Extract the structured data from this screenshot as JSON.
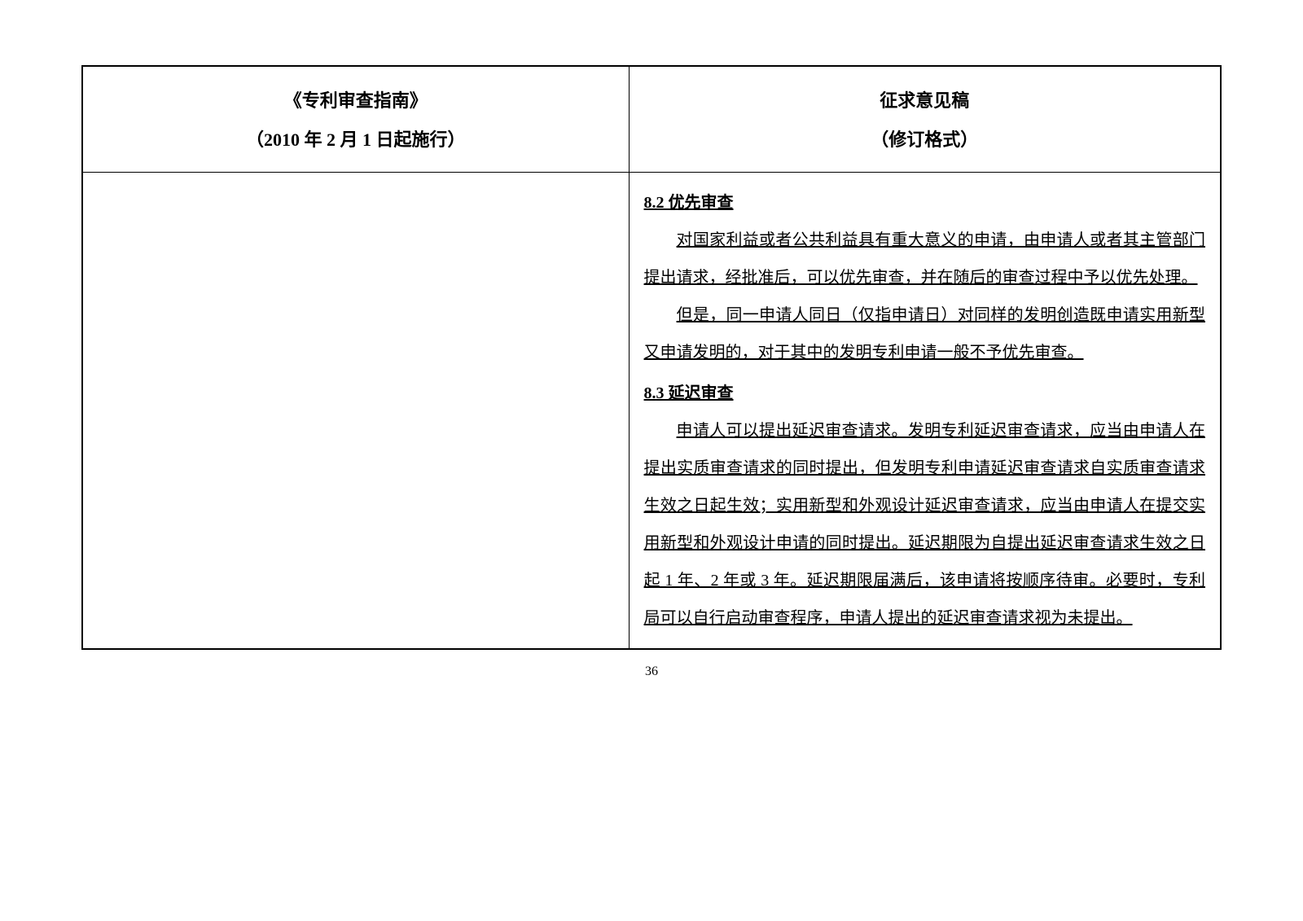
{
  "header": {
    "left_title": "《专利审查指南》",
    "left_subtitle": "（2010 年 2 月 1 日起施行）",
    "right_title": "征求意见稿",
    "right_subtitle": "（修订格式）"
  },
  "content": {
    "left": "",
    "sections": [
      {
        "heading": "8.2  优先审查",
        "paragraphs": [
          "对国家利益或者公共利益具有重大意义的申请，由申请人或者其主管部门提出请求，经批准后，可以优先审查，并在随后的审查过程中予以优先处理。",
          "但是，同一申请人同日（仅指申请日）对同样的发明创造既申请实用新型又申请发明的，对于其中的发明专利申请一般不予优先审查。"
        ]
      },
      {
        "heading": "8.3  延迟审查",
        "paragraphs": [
          "申请人可以提出延迟审查请求。发明专利延迟审查请求，应当由申请人在提出实质审查请求的同时提出，但发明专利申请延迟审查请求自实质审查请求生效之日起生效；实用新型和外观设计延迟审查请求，应当由申请人在提交实用新型和外观设计申请的同时提出。延迟期限为自提出延迟审查请求生效之日起 1 年、2 年或 3 年。延迟期限届满后，该申请将按顺序待审。必要时，专利局可以自行启动审查程序，申请人提出的延迟审查请求视为未提出。"
        ]
      }
    ]
  },
  "page_number": "36"
}
